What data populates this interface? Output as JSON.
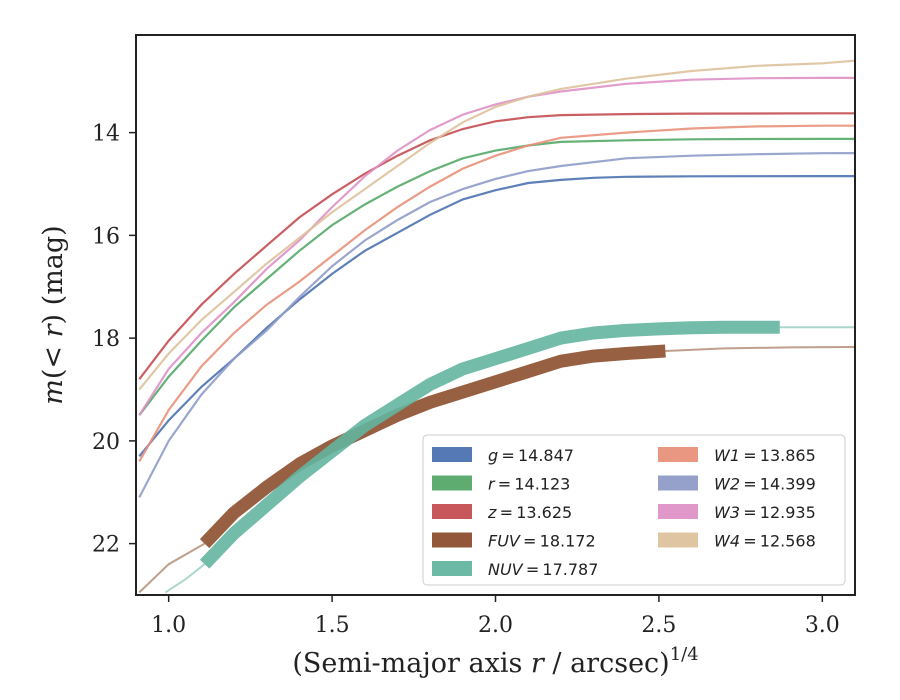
{
  "chart_data": {
    "type": "line",
    "xlabel": "(Semi-major axis r / arcsec)^1/4",
    "ylabel": "m(< r) (mag)",
    "xlim": [
      0.9,
      3.1
    ],
    "ylim": [
      23,
      12.1
    ],
    "y_inverted": true,
    "xticks": [
      "1.0",
      "1.5",
      "2.0",
      "2.5",
      "3.0"
    ],
    "yticks": [
      "14",
      "16",
      "18",
      "20",
      "22"
    ],
    "grid": false,
    "legend_position": "lower-right",
    "series": [
      {
        "name": "g = 14.847",
        "color": "#4c72b0",
        "band": false,
        "x": [
          0.91,
          1.0,
          1.1,
          1.2,
          1.3,
          1.4,
          1.5,
          1.6,
          1.7,
          1.8,
          1.9,
          2.0,
          2.1,
          2.2,
          2.3,
          2.4,
          2.6,
          2.8,
          3.0,
          3.1
        ],
        "y": [
          20.3,
          19.6,
          18.95,
          18.4,
          17.8,
          17.25,
          16.75,
          16.3,
          15.95,
          15.6,
          15.3,
          15.12,
          14.98,
          14.92,
          14.88,
          14.86,
          14.85,
          14.848,
          14.847,
          14.847
        ]
      },
      {
        "name": "r = 14.123",
        "color": "#55a868",
        "band": false,
        "x": [
          0.91,
          1.0,
          1.1,
          1.2,
          1.3,
          1.4,
          1.5,
          1.6,
          1.7,
          1.8,
          1.9,
          2.0,
          2.1,
          2.2,
          2.4,
          2.6,
          2.8,
          3.0,
          3.1
        ],
        "y": [
          19.5,
          18.75,
          18.05,
          17.4,
          16.85,
          16.3,
          15.8,
          15.4,
          15.05,
          14.75,
          14.5,
          14.35,
          14.25,
          14.18,
          14.15,
          14.13,
          14.125,
          14.123,
          14.123
        ]
      },
      {
        "name": "z = 13.625",
        "color": "#c44e52",
        "band": false,
        "x": [
          0.91,
          1.0,
          1.1,
          1.2,
          1.3,
          1.4,
          1.5,
          1.6,
          1.7,
          1.8,
          1.9,
          2.0,
          2.1,
          2.2,
          2.4,
          2.6,
          2.8,
          3.0,
          3.1
        ],
        "y": [
          18.8,
          18.05,
          17.35,
          16.75,
          16.2,
          15.65,
          15.2,
          14.8,
          14.45,
          14.15,
          13.93,
          13.78,
          13.7,
          13.66,
          13.64,
          13.63,
          13.627,
          13.625,
          13.625
        ]
      },
      {
        "name": "FUV = 18.172",
        "color": "#8c4f2e",
        "band": true,
        "x": [
          1.11,
          1.2,
          1.3,
          1.4,
          1.5,
          1.6,
          1.7,
          1.8,
          1.9,
          2.0,
          2.1,
          2.2,
          2.3,
          2.4,
          2.52
        ],
        "y": [
          22.0,
          21.4,
          20.9,
          20.45,
          20.1,
          19.8,
          19.5,
          19.25,
          19.05,
          18.85,
          18.65,
          18.45,
          18.35,
          18.3,
          18.25
        ],
        "ext_x": [
          0.91,
          1.0,
          1.11
        ],
        "ext_y": [
          22.95,
          22.4,
          22.0
        ],
        "tail_x": [
          2.52,
          2.7,
          2.9,
          3.1
        ],
        "tail_y": [
          18.25,
          18.2,
          18.18,
          18.172
        ]
      },
      {
        "name": "NUV = 17.787",
        "color": "#64b5a0",
        "band": true,
        "x": [
          1.11,
          1.2,
          1.3,
          1.4,
          1.5,
          1.6,
          1.7,
          1.8,
          1.9,
          2.0,
          2.1,
          2.2,
          2.3,
          2.4,
          2.5,
          2.6,
          2.7,
          2.87
        ],
        "y": [
          22.4,
          21.8,
          21.25,
          20.7,
          20.2,
          19.7,
          19.3,
          18.9,
          18.6,
          18.4,
          18.2,
          18.0,
          17.9,
          17.85,
          17.82,
          17.8,
          17.79,
          17.787
        ],
        "ext_x": [
          0.99,
          1.05,
          1.11
        ],
        "ext_y": [
          22.95,
          22.7,
          22.4
        ],
        "tail_x": [
          2.87,
          3.0,
          3.1
        ],
        "tail_y": [
          17.787,
          17.787,
          17.787
        ]
      },
      {
        "name": "W1 = 13.865",
        "color": "#e8917a",
        "band": false,
        "x": [
          0.91,
          1.0,
          1.1,
          1.2,
          1.3,
          1.4,
          1.5,
          1.6,
          1.7,
          1.8,
          1.9,
          2.0,
          2.1,
          2.2,
          2.4,
          2.6,
          2.8,
          3.0,
          3.1
        ],
        "y": [
          20.4,
          19.4,
          18.55,
          17.9,
          17.35,
          16.9,
          16.4,
          15.9,
          15.45,
          15.05,
          14.7,
          14.45,
          14.25,
          14.1,
          14.0,
          13.92,
          13.88,
          13.865,
          13.865
        ]
      },
      {
        "name": "W2 = 14.399",
        "color": "#8f9cc8",
        "band": false,
        "x": [
          0.91,
          1.0,
          1.1,
          1.2,
          1.3,
          1.4,
          1.5,
          1.6,
          1.7,
          1.8,
          1.9,
          2.0,
          2.1,
          2.2,
          2.4,
          2.6,
          2.8,
          3.0,
          3.1
        ],
        "y": [
          21.1,
          20.0,
          19.1,
          18.4,
          17.85,
          17.2,
          16.6,
          16.1,
          15.7,
          15.35,
          15.1,
          14.9,
          14.75,
          14.65,
          14.5,
          14.45,
          14.42,
          14.4,
          14.399
        ]
      },
      {
        "name": "W3 = 12.935",
        "color": "#de91c7",
        "band": false,
        "x": [
          0.91,
          1.0,
          1.1,
          1.2,
          1.3,
          1.4,
          1.5,
          1.6,
          1.7,
          1.8,
          1.9,
          2.0,
          2.1,
          2.2,
          2.4,
          2.6,
          2.8,
          3.0,
          3.1
        ],
        "y": [
          19.5,
          18.6,
          17.9,
          17.3,
          16.65,
          16.1,
          15.45,
          14.85,
          14.35,
          13.95,
          13.65,
          13.45,
          13.3,
          13.2,
          13.05,
          12.97,
          12.94,
          12.935,
          12.935
        ]
      },
      {
        "name": "W4 = 12.568",
        "color": "#ddc29c",
        "band": false,
        "x": [
          0.91,
          1.0,
          1.1,
          1.2,
          1.3,
          1.4,
          1.5,
          1.6,
          1.7,
          1.8,
          1.9,
          2.0,
          2.1,
          2.2,
          2.4,
          2.6,
          2.8,
          3.0,
          3.1
        ],
        "y": [
          19.0,
          18.3,
          17.65,
          17.1,
          16.55,
          16.05,
          15.55,
          15.1,
          14.65,
          14.2,
          13.8,
          13.5,
          13.3,
          13.15,
          12.95,
          12.8,
          12.7,
          12.65,
          12.6
        ]
      }
    ]
  }
}
